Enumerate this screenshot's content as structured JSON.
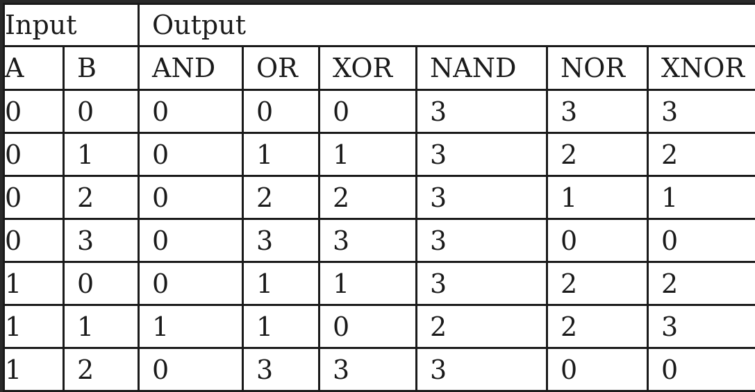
{
  "table": {
    "group_headers": [
      {
        "label": "Input",
        "span": 2
      },
      {
        "label": "Output",
        "span": 6
      }
    ],
    "column_headers": [
      "A",
      "B",
      "AND",
      "OR",
      "XOR",
      "NAND",
      "NOR",
      "XNOR"
    ],
    "rows": [
      [
        "0",
        "0",
        "0",
        "0",
        "0",
        "3",
        "3",
        "3"
      ],
      [
        "0",
        "1",
        "0",
        "1",
        "1",
        "3",
        "2",
        "2"
      ],
      [
        "0",
        "2",
        "0",
        "2",
        "2",
        "3",
        "1",
        "1"
      ],
      [
        "0",
        "3",
        "0",
        "3",
        "3",
        "3",
        "0",
        "0"
      ],
      [
        "1",
        "0",
        "0",
        "1",
        "1",
        "3",
        "2",
        "2"
      ],
      [
        "1",
        "1",
        "1",
        "1",
        "0",
        "2",
        "2",
        "3"
      ],
      [
        "1",
        "2",
        "0",
        "3",
        "3",
        "3",
        "0",
        "0"
      ]
    ]
  }
}
